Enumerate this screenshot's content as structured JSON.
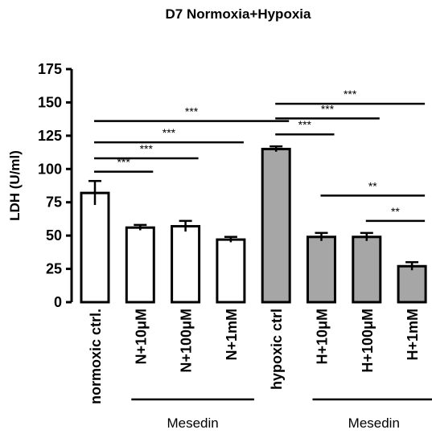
{
  "chart_data": {
    "type": "bar",
    "title": "D7 Normoxia+Hypoxia",
    "ylabel": "LDH (U/ml)",
    "ylim": [
      0,
      175
    ],
    "yticks": [
      0,
      25,
      50,
      75,
      100,
      125,
      150,
      175
    ],
    "categories": [
      "normoxic ctrl.",
      "N+10μM",
      "N+100μM",
      "N+1mM",
      "hypoxic ctrl",
      "H+10μM",
      "H+100μM",
      "H+1mM"
    ],
    "values": [
      82,
      56,
      57,
      47,
      115,
      49,
      49,
      27
    ],
    "errors": [
      9,
      2,
      4,
      2,
      2,
      3,
      3,
      3
    ],
    "fill_colors": [
      "#ffffff",
      "#ffffff",
      "#ffffff",
      "#ffffff",
      "#a6a6a6",
      "#a6a6a6",
      "#a6a6a6",
      "#a6a6a6"
    ],
    "groups": [
      {
        "label": "Mesedin",
        "from": 1,
        "to": 3
      },
      {
        "label": "Mesedin",
        "from": 5,
        "to": 7
      }
    ],
    "significance": [
      {
        "from": 0,
        "to": 1,
        "label": "***",
        "y": 98
      },
      {
        "from": 0,
        "to": 2,
        "label": "***",
        "y": 108
      },
      {
        "from": 0,
        "to": 3,
        "label": "***",
        "y": 120
      },
      {
        "from": 0,
        "to": 4,
        "label": "***",
        "y": 136
      },
      {
        "from": 4,
        "to": 5,
        "label": "***",
        "y": 126
      },
      {
        "from": 4,
        "to": 6,
        "label": "***",
        "y": 138
      },
      {
        "from": 4,
        "to": 7,
        "label": "***",
        "y": 149
      },
      {
        "from": 5,
        "to": 7,
        "label": "**",
        "y": 80
      },
      {
        "from": 6,
        "to": 7,
        "label": "**",
        "y": 61
      }
    ]
  }
}
